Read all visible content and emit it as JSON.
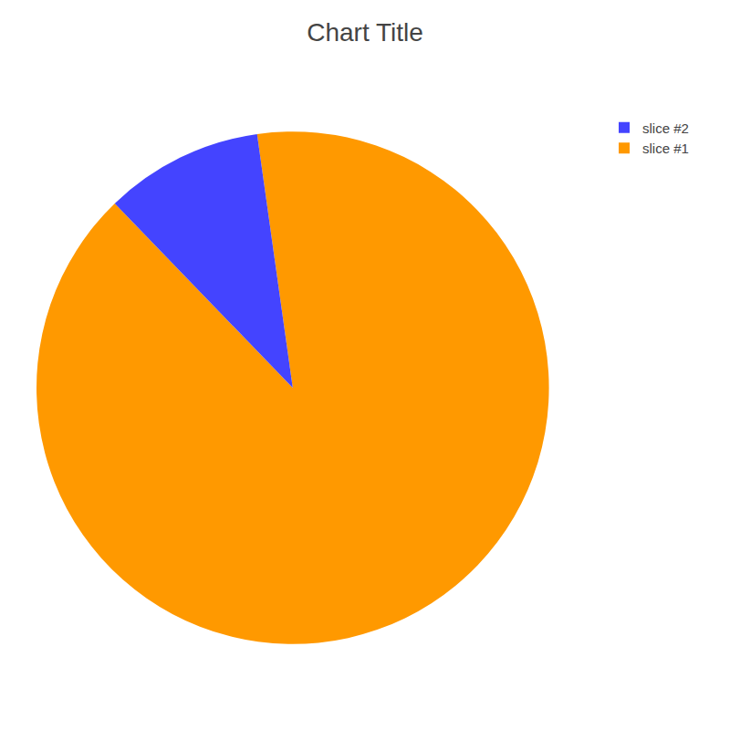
{
  "chart_data": {
    "type": "pie",
    "title": "Chart Title",
    "categories": [
      "slice #1",
      "slice #2"
    ],
    "values": [
      90,
      10
    ],
    "colors": [
      "#FF9900",
      "#4444FF"
    ],
    "legend": "upper right"
  }
}
